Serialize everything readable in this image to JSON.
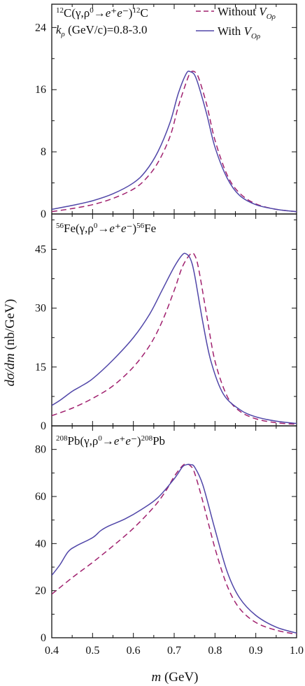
{
  "colors": {
    "without": "#a0206e",
    "with": "#5046a8",
    "axis": "#111111"
  },
  "figure": {
    "xlabel_var": "m",
    "xlabel_unit": " (GeV)",
    "ylabel_var": "dσ/dm",
    "ylabel_unit": " (nb/GeV)",
    "legend": {
      "without_prefix": "Without ",
      "with_prefix": "With ",
      "v_symbol": "V",
      "v_subscript": "Oρ"
    },
    "annotations": {
      "c12_prefix": "12",
      "c12_main": "C(γ,ρ",
      "c12_arrow": "0",
      "c12_products": "e⁺e⁻",
      "c12_suffix_sup": "12",
      "c12_suffix": "C",
      "krho_symbol": "k",
      "krho_sub": "ρ",
      "krho_text": " (GeV/c)=0.8-3.0",
      "fe56_prefix": "56",
      "fe56_main": "Fe(γ,ρ",
      "fe56_arrow": "0",
      "fe56_products": "e⁺e⁻",
      "fe56_suffix_sup": "56",
      "fe56_suffix": "Fe",
      "pb208_prefix": "208",
      "pb208_main": "Pb(γ,ρ",
      "pb208_arrow": "0",
      "pb208_products": "e⁺e⁻",
      "pb208_suffix_sup": "208",
      "pb208_suffix": "Pb"
    }
  },
  "chart_data": [
    {
      "type": "line",
      "panel": "12C",
      "xlim": [
        0.4,
        1.0
      ],
      "ylim": [
        0,
        27
      ],
      "yticks": [
        0,
        8,
        16,
        24
      ],
      "xticks": [
        0.4,
        0.5,
        0.6,
        0.7,
        0.8,
        0.9,
        1.0
      ],
      "legend_position": "top-right",
      "series": [
        {
          "name": "Without V_Oρ",
          "style": "dashed",
          "x": [
            0.4,
            0.45,
            0.5,
            0.55,
            0.6,
            0.63,
            0.66,
            0.69,
            0.71,
            0.73,
            0.74,
            0.75,
            0.76,
            0.78,
            0.8,
            0.83,
            0.86,
            0.9,
            0.95,
            1.0
          ],
          "y": [
            0.3,
            0.7,
            1.2,
            2.0,
            3.2,
            4.5,
            6.6,
            10.0,
            13.8,
            17.0,
            18.2,
            18.3,
            17.5,
            14.0,
            9.5,
            5.0,
            2.7,
            1.3,
            0.6,
            0.3
          ]
        },
        {
          "name": "With V_Oρ",
          "style": "solid",
          "x": [
            0.4,
            0.45,
            0.5,
            0.55,
            0.6,
            0.63,
            0.66,
            0.69,
            0.71,
            0.73,
            0.74,
            0.75,
            0.76,
            0.78,
            0.8,
            0.83,
            0.86,
            0.9,
            0.95,
            1.0
          ],
          "y": [
            0.6,
            1.1,
            1.7,
            2.6,
            4.0,
            5.5,
            8.0,
            11.8,
            15.5,
            18.1,
            18.3,
            17.9,
            16.5,
            12.8,
            8.6,
            4.6,
            2.4,
            1.2,
            0.6,
            0.3
          ]
        }
      ]
    },
    {
      "type": "line",
      "panel": "56Fe",
      "xlim": [
        0.4,
        1.0
      ],
      "ylim": [
        0,
        54
      ],
      "yticks": [
        0,
        15,
        30,
        45
      ],
      "xticks": [
        0.4,
        0.5,
        0.6,
        0.7,
        0.8,
        0.9,
        1.0
      ],
      "series": [
        {
          "name": "Without V_Oρ",
          "style": "dashed",
          "x": [
            0.4,
            0.45,
            0.5,
            0.55,
            0.6,
            0.64,
            0.67,
            0.7,
            0.72,
            0.74,
            0.75,
            0.76,
            0.78,
            0.8,
            0.83,
            0.86,
            0.9,
            0.95,
            1.0
          ],
          "y": [
            2.6,
            4.5,
            7.0,
            10.2,
            15.0,
            20.5,
            26.5,
            34.5,
            40.5,
            43.8,
            43.5,
            40.0,
            28.0,
            16.5,
            7.5,
            3.8,
            1.8,
            0.8,
            0.4
          ]
        },
        {
          "name": "With V_Oρ",
          "style": "solid",
          "x": [
            0.4,
            0.42,
            0.45,
            0.47,
            0.5,
            0.55,
            0.6,
            0.64,
            0.67,
            0.7,
            0.72,
            0.73,
            0.74,
            0.75,
            0.77,
            0.79,
            0.82,
            0.86,
            0.9,
            0.95,
            1.0
          ],
          "y": [
            5.2,
            6.5,
            8.8,
            10.0,
            12.0,
            16.8,
            22.5,
            28.5,
            34.5,
            40.5,
            43.6,
            43.8,
            42.5,
            38.5,
            26.5,
            16.5,
            8.2,
            4.2,
            2.3,
            1.2,
            0.6
          ]
        }
      ]
    },
    {
      "type": "line",
      "panel": "208Pb",
      "xlim": [
        0.4,
        1.0
      ],
      "ylim": [
        0,
        90
      ],
      "yticks": [
        0,
        20,
        40,
        60,
        80
      ],
      "xticks": [
        0.4,
        0.5,
        0.6,
        0.7,
        0.8,
        0.9,
        1.0
      ],
      "series": [
        {
          "name": "Without V_Oρ",
          "style": "dashed",
          "x": [
            0.4,
            0.45,
            0.5,
            0.55,
            0.6,
            0.65,
            0.68,
            0.7,
            0.72,
            0.73,
            0.74,
            0.75,
            0.77,
            0.8,
            0.83,
            0.86,
            0.9,
            0.95,
            1.0
          ],
          "y": [
            18.5,
            25.5,
            32.0,
            39.0,
            46.5,
            55.5,
            62.5,
            68.5,
            73.0,
            73.8,
            73.0,
            70.0,
            58.0,
            38.0,
            22.0,
            12.5,
            6.5,
            3.2,
            1.5
          ]
        },
        {
          "name": "With V_Oρ",
          "style": "solid",
          "x": [
            0.4,
            0.42,
            0.44,
            0.46,
            0.5,
            0.52,
            0.54,
            0.58,
            0.62,
            0.66,
            0.7,
            0.72,
            0.73,
            0.74,
            0.75,
            0.77,
            0.8,
            0.83,
            0.86,
            0.9,
            0.95,
            1.0
          ],
          "y": [
            26.5,
            31.0,
            36.5,
            39.0,
            42.5,
            45.5,
            47.5,
            50.5,
            54.5,
            59.5,
            67.5,
            72.5,
            73.5,
            73.5,
            72.5,
            65.0,
            46.0,
            28.0,
            17.0,
            9.5,
            4.5,
            2.0
          ]
        }
      ]
    }
  ]
}
